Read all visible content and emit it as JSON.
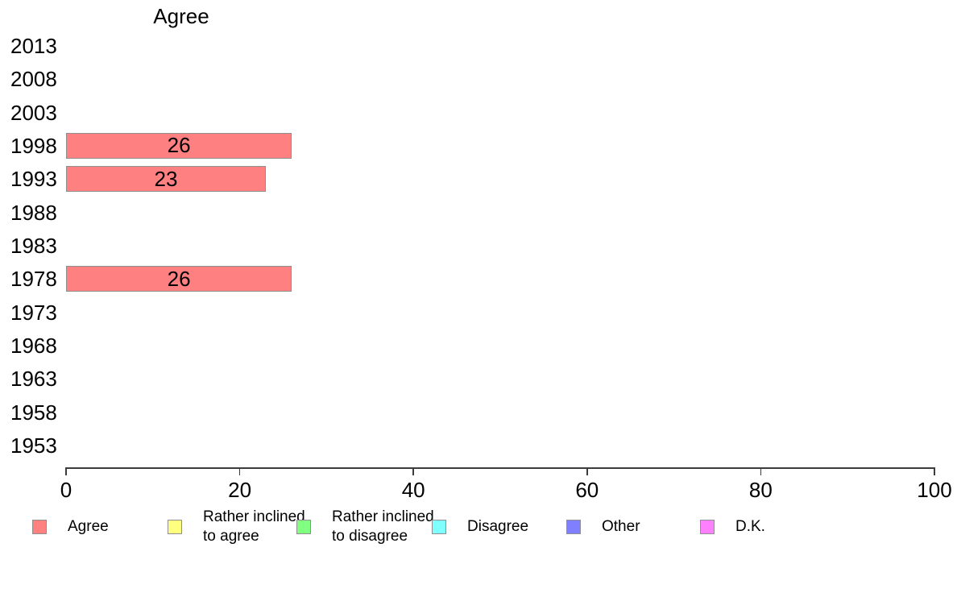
{
  "chart_data": {
    "type": "bar",
    "orientation": "horizontal",
    "title": "Agree",
    "categories": [
      "2013",
      "2008",
      "2003",
      "1998",
      "1993",
      "1988",
      "1983",
      "1978",
      "1973",
      "1968",
      "1963",
      "1958",
      "1953"
    ],
    "values": [
      null,
      null,
      null,
      26,
      23,
      null,
      null,
      26,
      null,
      null,
      null,
      null,
      null
    ],
    "bar_value_labels": [
      "",
      "",
      "",
      "26",
      "23",
      "",
      "",
      "26",
      "",
      "",
      "",
      "",
      ""
    ],
    "xlabel": "",
    "ylabel": "",
    "xlim": [
      0,
      100
    ],
    "x_ticks": [
      0,
      20,
      40,
      60,
      80,
      100
    ],
    "grid": false,
    "bar_color": "#FF8080",
    "bar_border_color": "#8f8f8f",
    "axis_color": "#3c3c3c",
    "legend": {
      "position": "bottom",
      "items": [
        {
          "label_lines": [
            "Agree"
          ],
          "color": "#FF8080"
        },
        {
          "label_lines": [
            "Rather inclined",
            "to agree"
          ],
          "color": "#FFFF80"
        },
        {
          "label_lines": [
            "Rather inclined",
            "to disagree"
          ],
          "color": "#80FF80"
        },
        {
          "label_lines": [
            "Disagree"
          ],
          "color": "#80FFFF"
        },
        {
          "label_lines": [
            "Other"
          ],
          "color": "#8080FF"
        },
        {
          "label_lines": [
            "D.K."
          ],
          "color": "#FF80FF"
        }
      ]
    }
  }
}
